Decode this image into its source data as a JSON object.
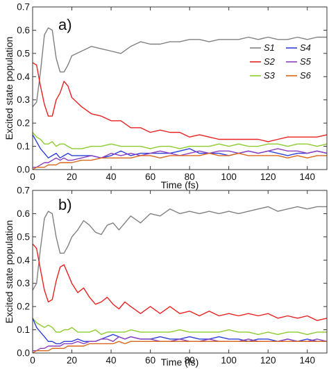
{
  "figure": {
    "shared_ylabel": "Excited state population",
    "shared_xlabel": "Time (fs)"
  },
  "chart_data": [
    {
      "type": "line",
      "panel_label": "a)",
      "xlabel": "Time (fs)",
      "ylabel": "Excited state population",
      "xlim": [
        0,
        150
      ],
      "ylim": [
        0,
        0.7
      ],
      "x_ticks": [
        0,
        20,
        40,
        60,
        80,
        100,
        120,
        140
      ],
      "y_ticks": [
        0.0,
        0.1,
        0.2,
        0.3,
        0.4,
        0.5,
        0.6,
        0.7
      ],
      "legend": {
        "placement": "top-right",
        "columns": 2
      },
      "x": [
        0,
        2,
        4,
        6,
        8,
        10,
        12,
        14,
        16,
        18,
        20,
        25,
        30,
        35,
        40,
        45,
        50,
        55,
        60,
        65,
        70,
        75,
        80,
        85,
        90,
        95,
        100,
        105,
        110,
        115,
        120,
        125,
        130,
        135,
        140,
        145,
        150
      ],
      "series": [
        {
          "name": "S1",
          "color": "#808080",
          "values": [
            0.27,
            0.29,
            0.42,
            0.58,
            0.61,
            0.6,
            0.48,
            0.42,
            0.42,
            0.45,
            0.49,
            0.51,
            0.53,
            0.52,
            0.51,
            0.5,
            0.53,
            0.55,
            0.54,
            0.54,
            0.55,
            0.55,
            0.56,
            0.56,
            0.55,
            0.56,
            0.56,
            0.56,
            0.57,
            0.56,
            0.57,
            0.56,
            0.56,
            0.57,
            0.56,
            0.57,
            0.57
          ]
        },
        {
          "name": "S2",
          "color": "#e82020",
          "values": [
            0.46,
            0.45,
            0.36,
            0.28,
            0.23,
            0.23,
            0.3,
            0.33,
            0.38,
            0.36,
            0.31,
            0.27,
            0.24,
            0.23,
            0.21,
            0.21,
            0.18,
            0.18,
            0.16,
            0.17,
            0.16,
            0.16,
            0.14,
            0.15,
            0.14,
            0.13,
            0.13,
            0.13,
            0.13,
            0.13,
            0.12,
            0.13,
            0.14,
            0.14,
            0.14,
            0.14,
            0.15
          ]
        },
        {
          "name": "S3",
          "color": "#8ccc2c",
          "values": [
            0.16,
            0.14,
            0.13,
            0.11,
            0.11,
            0.12,
            0.1,
            0.11,
            0.11,
            0.1,
            0.09,
            0.09,
            0.1,
            0.1,
            0.11,
            0.1,
            0.1,
            0.1,
            0.09,
            0.1,
            0.1,
            0.09,
            0.1,
            0.1,
            0.1,
            0.11,
            0.1,
            0.11,
            0.1,
            0.1,
            0.11,
            0.11,
            0.1,
            0.11,
            0.11,
            0.1,
            0.11
          ]
        },
        {
          "name": "S4",
          "color": "#2d3fd8",
          "values": [
            0.15,
            0.12,
            0.09,
            0.07,
            0.05,
            0.06,
            0.07,
            0.05,
            0.06,
            0.07,
            0.06,
            0.06,
            0.06,
            0.05,
            0.06,
            0.08,
            0.06,
            0.07,
            0.07,
            0.07,
            0.07,
            0.08,
            0.09,
            0.07,
            0.07,
            0.07,
            0.06,
            0.07,
            0.08,
            0.07,
            0.08,
            0.07,
            0.06,
            0.07,
            0.07,
            0.08,
            0.07
          ]
        },
        {
          "name": "S5",
          "color": "#8a3fc0",
          "values": [
            0.01,
            0.01,
            0.02,
            0.03,
            0.03,
            0.04,
            0.05,
            0.04,
            0.05,
            0.04,
            0.04,
            0.05,
            0.06,
            0.05,
            0.07,
            0.06,
            0.07,
            0.06,
            0.07,
            0.08,
            0.07,
            0.06,
            0.07,
            0.08,
            0.07,
            0.08,
            0.08,
            0.07,
            0.08,
            0.07,
            0.08,
            0.09,
            0.08,
            0.08,
            0.07,
            0.08,
            0.07
          ]
        },
        {
          "name": "S6",
          "color": "#d9671a",
          "values": [
            0.0,
            0.01,
            0.01,
            0.01,
            0.02,
            0.02,
            0.02,
            0.03,
            0.03,
            0.03,
            0.03,
            0.04,
            0.04,
            0.05,
            0.05,
            0.05,
            0.05,
            0.06,
            0.06,
            0.05,
            0.06,
            0.06,
            0.06,
            0.06,
            0.07,
            0.06,
            0.06,
            0.07,
            0.06,
            0.06,
            0.06,
            0.06,
            0.05,
            0.06,
            0.05,
            0.06,
            0.06
          ]
        }
      ]
    },
    {
      "type": "line",
      "panel_label": "b)",
      "xlabel": "Time (fs)",
      "ylabel": "Excited state population",
      "xlim": [
        0,
        150
      ],
      "ylim": [
        0,
        0.7
      ],
      "x_ticks": [
        0,
        20,
        40,
        60,
        80,
        100,
        120,
        140
      ],
      "y_ticks": [
        0.0,
        0.1,
        0.2,
        0.3,
        0.4,
        0.5,
        0.6,
        0.7
      ],
      "x": [
        0,
        2,
        4,
        6,
        8,
        10,
        12,
        14,
        16,
        18,
        20,
        23,
        26,
        29,
        32,
        35,
        38,
        41,
        44,
        47,
        50,
        55,
        60,
        65,
        70,
        75,
        80,
        85,
        90,
        95,
        100,
        105,
        110,
        115,
        120,
        125,
        130,
        135,
        140,
        145,
        150
      ],
      "series": [
        {
          "name": "S1",
          "color": "#808080",
          "values": [
            0.27,
            0.3,
            0.45,
            0.58,
            0.61,
            0.6,
            0.5,
            0.43,
            0.43,
            0.46,
            0.5,
            0.53,
            0.57,
            0.55,
            0.52,
            0.51,
            0.55,
            0.56,
            0.53,
            0.56,
            0.59,
            0.56,
            0.6,
            0.59,
            0.62,
            0.6,
            0.61,
            0.6,
            0.61,
            0.6,
            0.61,
            0.6,
            0.61,
            0.62,
            0.63,
            0.61,
            0.62,
            0.63,
            0.62,
            0.63,
            0.63
          ]
        },
        {
          "name": "S2",
          "color": "#e82020",
          "values": [
            0.47,
            0.45,
            0.36,
            0.27,
            0.22,
            0.23,
            0.31,
            0.37,
            0.38,
            0.34,
            0.3,
            0.26,
            0.28,
            0.24,
            0.21,
            0.22,
            0.24,
            0.21,
            0.19,
            0.22,
            0.2,
            0.17,
            0.2,
            0.17,
            0.2,
            0.17,
            0.18,
            0.16,
            0.18,
            0.16,
            0.17,
            0.16,
            0.17,
            0.16,
            0.17,
            0.15,
            0.16,
            0.15,
            0.16,
            0.14,
            0.15
          ]
        },
        {
          "name": "S3",
          "color": "#8ccc2c",
          "values": [
            0.15,
            0.13,
            0.12,
            0.11,
            0.12,
            0.11,
            0.09,
            0.09,
            0.1,
            0.1,
            0.11,
            0.09,
            0.09,
            0.09,
            0.1,
            0.08,
            0.09,
            0.09,
            0.09,
            0.09,
            0.1,
            0.09,
            0.09,
            0.09,
            0.09,
            0.1,
            0.09,
            0.09,
            0.09,
            0.09,
            0.1,
            0.09,
            0.09,
            0.08,
            0.09,
            0.08,
            0.09,
            0.09,
            0.08,
            0.09,
            0.09
          ]
        },
        {
          "name": "S4",
          "color": "#2d3fd8",
          "values": [
            0.15,
            0.11,
            0.09,
            0.07,
            0.05,
            0.05,
            0.04,
            0.04,
            0.05,
            0.05,
            0.05,
            0.06,
            0.05,
            0.05,
            0.05,
            0.06,
            0.07,
            0.08,
            0.07,
            0.06,
            0.07,
            0.06,
            0.06,
            0.07,
            0.06,
            0.06,
            0.07,
            0.06,
            0.06,
            0.07,
            0.06,
            0.06,
            0.05,
            0.06,
            0.06,
            0.05,
            0.06,
            0.05,
            0.06,
            0.05,
            0.05
          ]
        },
        {
          "name": "S5",
          "color": "#8a3fc0",
          "values": [
            0.01,
            0.01,
            0.02,
            0.02,
            0.03,
            0.03,
            0.03,
            0.03,
            0.04,
            0.04,
            0.04,
            0.05,
            0.04,
            0.05,
            0.05,
            0.06,
            0.06,
            0.05,
            0.07,
            0.06,
            0.07,
            0.06,
            0.06,
            0.05,
            0.05,
            0.06,
            0.05,
            0.05,
            0.06,
            0.05,
            0.05,
            0.05,
            0.06,
            0.05,
            0.05,
            0.05,
            0.06,
            0.05,
            0.05,
            0.06,
            0.05
          ]
        },
        {
          "name": "S6",
          "color": "#d9671a",
          "values": [
            0.0,
            0.01,
            0.01,
            0.01,
            0.01,
            0.02,
            0.02,
            0.02,
            0.02,
            0.03,
            0.03,
            0.03,
            0.03,
            0.04,
            0.04,
            0.04,
            0.04,
            0.04,
            0.05,
            0.04,
            0.05,
            0.05,
            0.05,
            0.05,
            0.05,
            0.05,
            0.05,
            0.05,
            0.05,
            0.05,
            0.05,
            0.05,
            0.05,
            0.05,
            0.05,
            0.05,
            0.05,
            0.05,
            0.05,
            0.05,
            0.05
          ]
        }
      ]
    }
  ]
}
